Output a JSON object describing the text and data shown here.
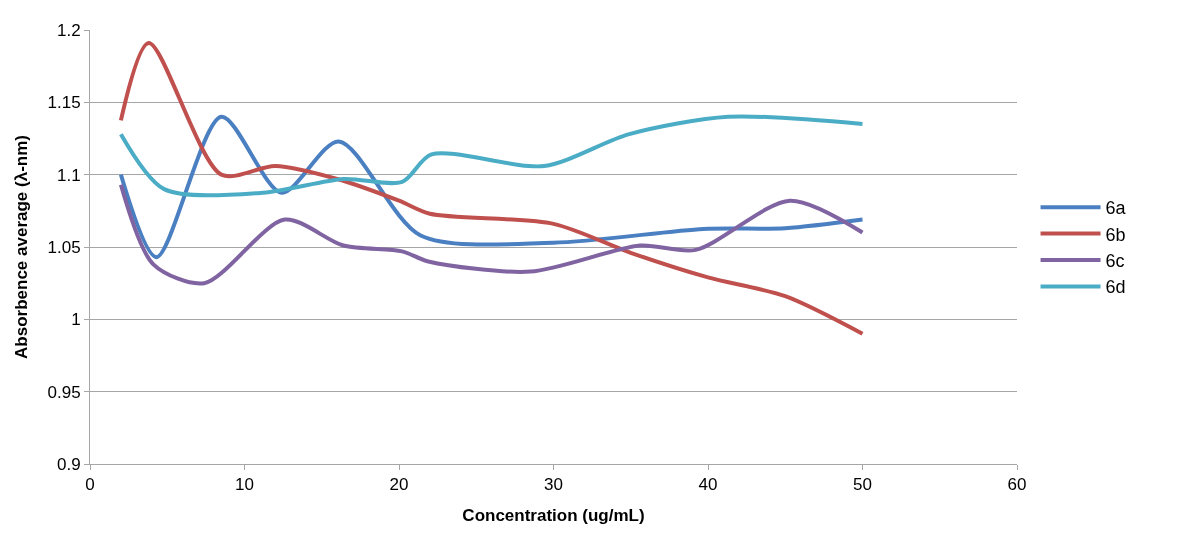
{
  "chart_data": {
    "type": "line",
    "xlabel": "Concentration (ug/mL)",
    "ylabel": "Absorbence average (λ-nm)",
    "xlim": [
      0,
      60
    ],
    "xticks": [
      0,
      10,
      20,
      30,
      40,
      50,
      60
    ],
    "ylim": [
      0.9,
      1.2
    ],
    "yticks": [
      0.9,
      0.95,
      1,
      1.05,
      1.1,
      1.15,
      1.2
    ],
    "grid": "y",
    "legend": "right",
    "line_style": "solid",
    "series": [
      {
        "name": "6a",
        "color": "#4a7fc1",
        "x": [
          2,
          4.3,
          8.5,
          12.4,
          16.1,
          21.4,
          30,
          39.7,
          45,
          50
        ],
        "values": [
          1.1,
          1.043,
          1.14,
          1.0875,
          1.123,
          1.058,
          1.053,
          1.0625,
          1.063,
          1.069
        ]
      },
      {
        "name": "6b",
        "color": "#c0504d",
        "x": [
          2,
          3.8,
          8.5,
          12,
          16,
          20,
          22,
          30,
          35,
          40,
          45,
          50
        ],
        "values": [
          1.1375,
          1.191,
          1.1,
          1.106,
          1.097,
          1.082,
          1.073,
          1.066,
          1.046,
          1.029,
          1.016,
          0.99
        ]
      },
      {
        "name": "6c",
        "color": "#8064a2",
        "x": [
          2,
          4.1,
          7.4,
          12.6,
          16.4,
          20.2,
          21.9,
          28.5,
          35.6,
          39.2,
          45.3,
          50
        ],
        "values": [
          1.093,
          1.038,
          1.025,
          1.069,
          1.051,
          1.047,
          1.04,
          1.033,
          1.051,
          1.048,
          1.082,
          1.06
        ]
      },
      {
        "name": "6d",
        "color": "#4bacc6",
        "x": [
          2,
          4.8,
          11.2,
          16.4,
          20.2,
          22.1,
          29.4,
          34.9,
          41.3,
          50
        ],
        "values": [
          1.128,
          1.09,
          1.0875,
          1.097,
          1.095,
          1.114,
          1.106,
          1.128,
          1.14,
          1.135
        ]
      }
    ]
  }
}
